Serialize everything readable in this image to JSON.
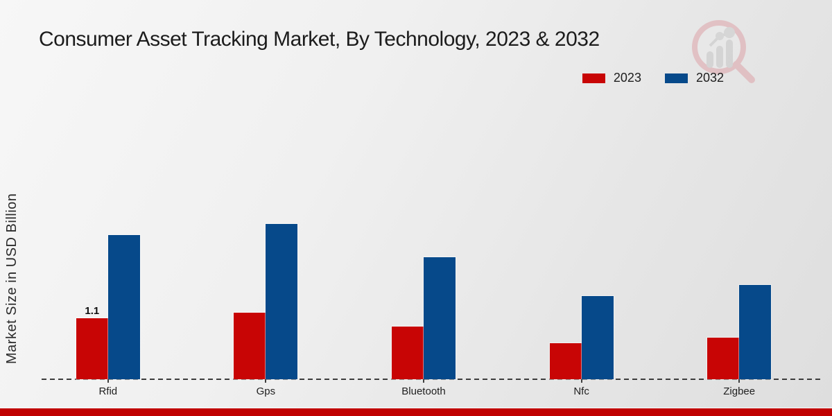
{
  "page": {
    "title": "Consumer Asset Tracking Market, By Technology, 2023 & 2032"
  },
  "chart_data": {
    "type": "bar",
    "title": "Consumer Asset Tracking Market, By Technology, 2023 & 2032",
    "ylabel": "Market Size in USD Billion",
    "xlabel": "",
    "categories": [
      "Rfid",
      "Gps",
      "Bluetooth",
      "Nfc",
      "Zigbee"
    ],
    "series": [
      {
        "name": "2023",
        "color": "#c80505",
        "values": [
          1.1,
          1.2,
          0.95,
          0.65,
          0.75
        ]
      },
      {
        "name": "2032",
        "color": "#06498a",
        "values": [
          2.6,
          2.8,
          2.2,
          1.5,
          1.7
        ]
      }
    ],
    "data_labels": [
      {
        "series": "2023",
        "category": "Rfid",
        "text": "1.1"
      }
    ],
    "ylim": [
      0,
      3
    ],
    "grid": false,
    "axis_ticks_visible": false,
    "legend_position": "top-right",
    "baseline_style": "dashed"
  },
  "legend": {
    "items": [
      {
        "label": "2023",
        "color": "#c80505"
      },
      {
        "label": "2032",
        "color": "#06498a"
      }
    ]
  },
  "icons": {
    "watermark": "magnifier-bar-chart-logo"
  },
  "colors": {
    "series_2023": "#c80505",
    "series_2032": "#06498a",
    "footer_band": "#c00000",
    "baseline": "#3c3c3c",
    "title_text": "#1c1c1c"
  }
}
